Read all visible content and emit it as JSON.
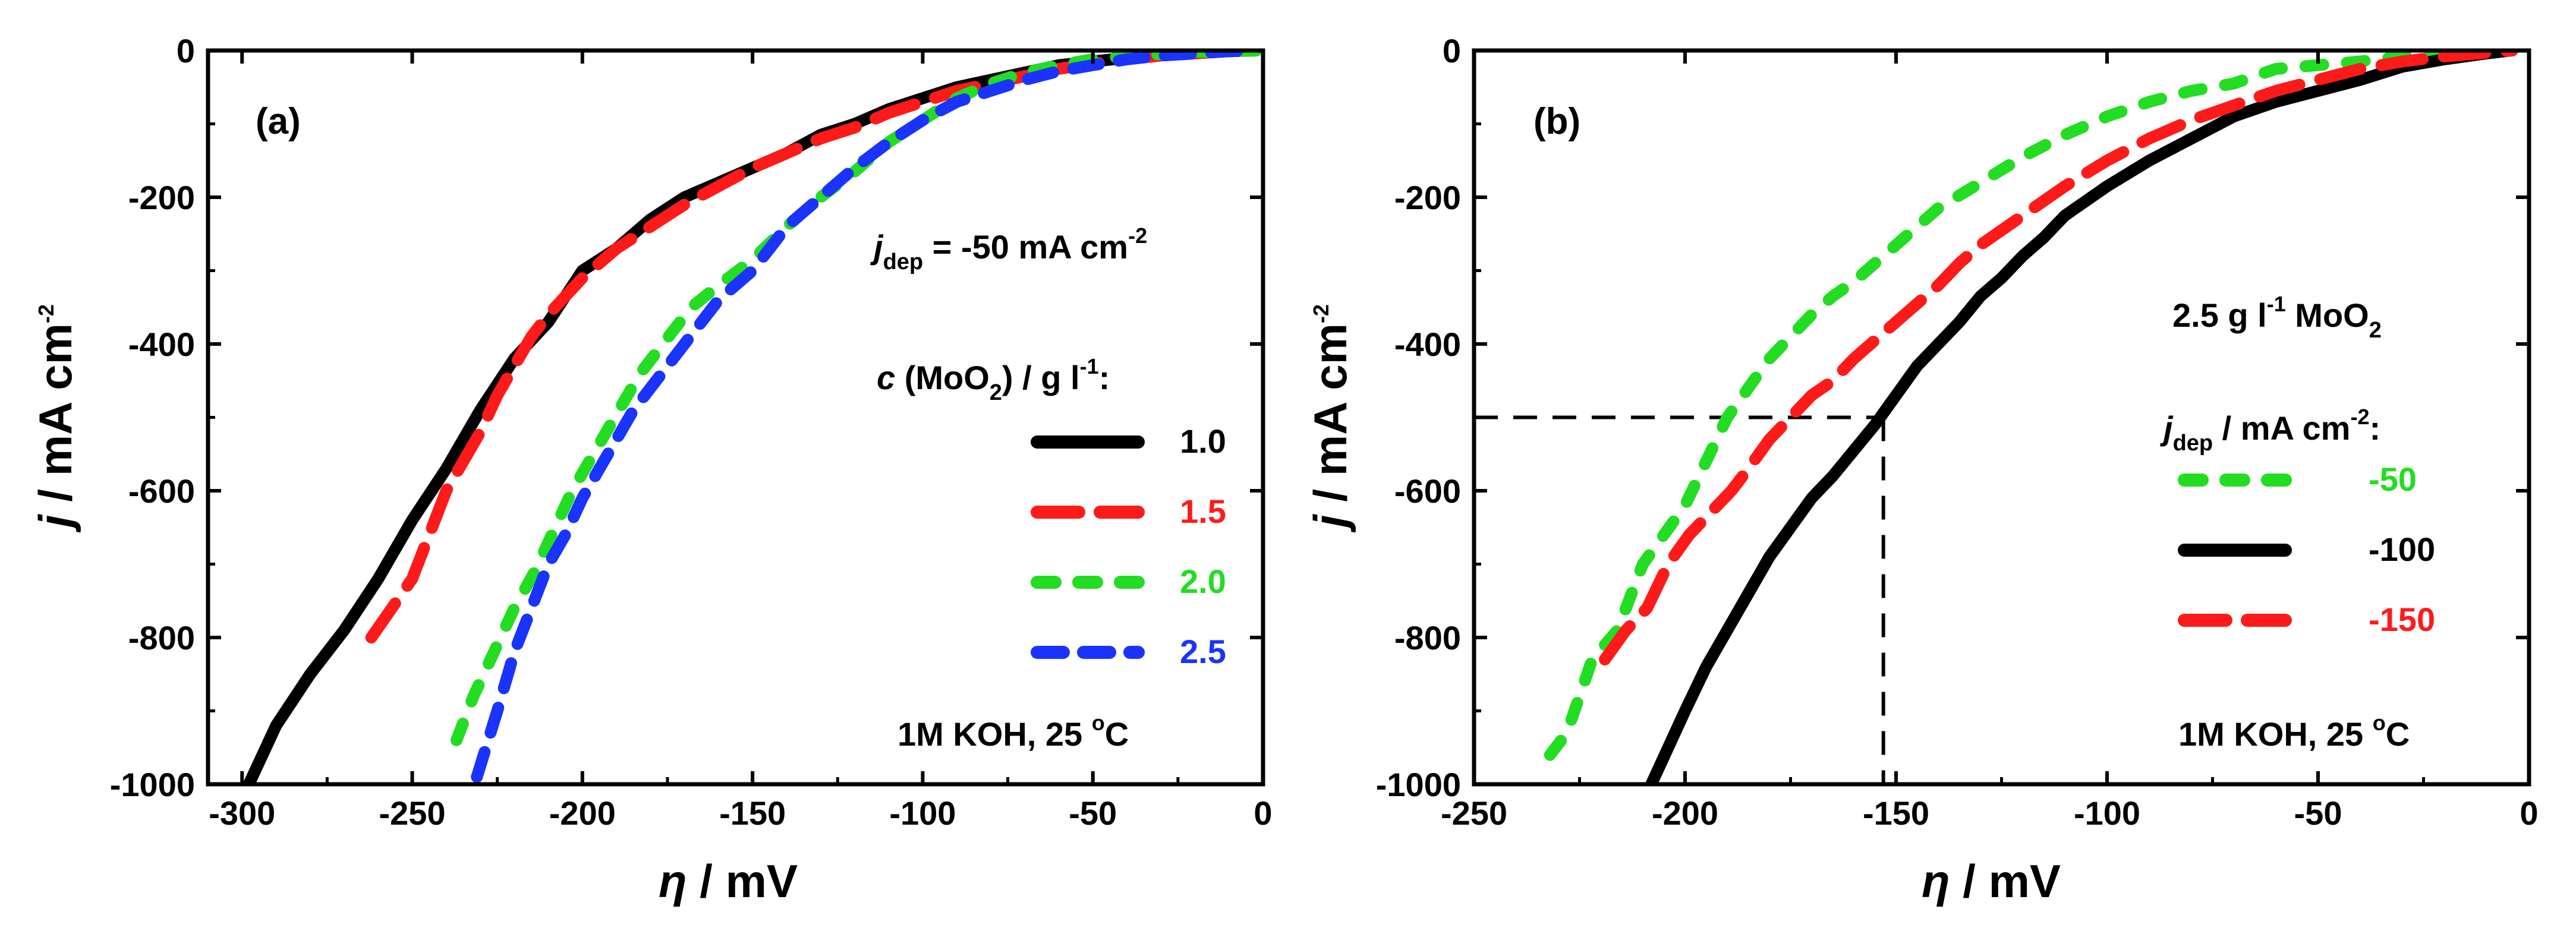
{
  "chart_data": [
    {
      "type": "line",
      "panel_label": "(a)",
      "xlabel_symbol": "η",
      "xlabel_unit": " / mV",
      "ylabel_symbol": "j",
      "ylabel_unit": " / mA cm",
      "ylabel_exp": "-2",
      "xlim": [
        -310,
        0
      ],
      "ylim": [
        -1000,
        0
      ],
      "xticks": [
        -300,
        -250,
        -200,
        -150,
        -100,
        -50,
        0
      ],
      "yticks": [
        0,
        -200,
        -400,
        -600,
        -800,
        -1000
      ],
      "annotation_jdep": {
        "symbol": "j",
        "sub": "dep",
        "text": " = -50 mA cm",
        "exp": "-2"
      },
      "legend_title": {
        "symbol": "c",
        "text1": " (MoO",
        "sub": "2",
        "text2": ") / g l",
        "exp": "-1",
        "text3": ":"
      },
      "legend_position": "center-right",
      "condition": {
        "text": "1M KOH, 25 ",
        "sup": "o",
        "tail": "C"
      },
      "series": [
        {
          "name": "1.0",
          "color": "#000000",
          "dash": "solid",
          "x": [
            -298,
            -290,
            -280,
            -270,
            -260,
            -250,
            -240,
            -230,
            -220,
            -210,
            -200,
            -190,
            -180,
            -170,
            -160,
            -150,
            -140,
            -130,
            -120,
            -110,
            -100,
            -90,
            -80,
            -70,
            -60,
            -50,
            -40,
            -30,
            -20,
            -10,
            -2
          ],
          "y": [
            -1000,
            -920,
            -850,
            -790,
            -720,
            -640,
            -570,
            -490,
            -420,
            -370,
            -300,
            -270,
            -230,
            -200,
            -180,
            -160,
            -140,
            -115,
            -100,
            -80,
            -65,
            -50,
            -40,
            -30,
            -20,
            -15,
            -10,
            -6,
            -3,
            -1,
            0
          ]
        },
        {
          "name": "1.5",
          "color": "#ff1a1a",
          "dash": "long",
          "x": [
            -262,
            -256,
            -250,
            -245,
            -240,
            -235,
            -230,
            -225,
            -220,
            -215,
            -210,
            -205,
            -200,
            -190,
            -180,
            -170,
            -160,
            -150,
            -140,
            -130,
            -120,
            -110,
            -100,
            -90,
            -80,
            -70,
            -60,
            -50,
            -40,
            -30,
            -20,
            -10,
            -2
          ],
          "y": [
            -800,
            -760,
            -720,
            -660,
            -600,
            -560,
            -520,
            -470,
            -430,
            -390,
            -360,
            -335,
            -310,
            -270,
            -240,
            -210,
            -185,
            -160,
            -140,
            -120,
            -105,
            -85,
            -70,
            -55,
            -45,
            -35,
            -25,
            -18,
            -12,
            -7,
            -4,
            -1,
            0
          ]
        },
        {
          "name": "2.0",
          "color": "#22dd22",
          "dash": "short",
          "x": [
            -237,
            -232,
            -226,
            -220,
            -214,
            -208,
            -203,
            -198,
            -193,
            -188,
            -183,
            -178,
            -173,
            -168,
            -160,
            -150,
            -140,
            -130,
            -120,
            -110,
            -100,
            -90,
            -80,
            -70,
            -60,
            -50,
            -40,
            -30,
            -20,
            -10,
            -2
          ],
          "y": [
            -940,
            -880,
            -820,
            -760,
            -710,
            -650,
            -600,
            -560,
            -520,
            -480,
            -440,
            -410,
            -380,
            -350,
            -320,
            -285,
            -240,
            -200,
            -165,
            -125,
            -95,
            -65,
            -45,
            -30,
            -20,
            -12,
            -8,
            -5,
            -2,
            -1,
            0
          ]
        },
        {
          "name": "2.5",
          "color": "#1a33ff",
          "dash": "medium",
          "x": [
            -231,
            -225,
            -220,
            -215,
            -210,
            -205,
            -200,
            -195,
            -190,
            -185,
            -180,
            -175,
            -170,
            -165,
            -160,
            -155,
            -150,
            -145,
            -140,
            -130,
            -120,
            -110,
            -100,
            -90,
            -80,
            -70,
            -60,
            -50,
            -40,
            -30,
            -20,
            -10,
            -2
          ],
          "y": [
            -990,
            -900,
            -820,
            -760,
            -700,
            -660,
            -610,
            -570,
            -530,
            -490,
            -460,
            -430,
            -400,
            -370,
            -340,
            -320,
            -300,
            -270,
            -240,
            -200,
            -160,
            -125,
            -95,
            -70,
            -55,
            -40,
            -28,
            -20,
            -12,
            -7,
            -4,
            -1,
            0
          ]
        }
      ]
    },
    {
      "type": "line",
      "panel_label": "(b)",
      "xlabel_symbol": "η",
      "xlabel_unit": " / mV",
      "ylabel_symbol": "j",
      "ylabel_unit": " / mA cm",
      "ylabel_exp": "-2",
      "xlim": [
        -250,
        0
      ],
      "ylim": [
        -1000,
        0
      ],
      "xticks": [
        -250,
        -200,
        -150,
        -100,
        -50,
        0
      ],
      "yticks": [
        0,
        -200,
        -400,
        -600,
        -800,
        -1000
      ],
      "annotation_conc": {
        "text": "2.5 g l",
        "exp": "-1",
        "text2": " MoO",
        "sub": "2"
      },
      "legend_title": {
        "symbol": "j",
        "sub": "dep",
        "text": " / mA cm",
        "exp": "-2",
        "tail": ":"
      },
      "legend_position": "center-right",
      "condition": {
        "text": "1M KOH, 25 ",
        "sup": "o",
        "tail": "C"
      },
      "guide_point": {
        "x": -153,
        "y": -500
      },
      "series": [
        {
          "name": "-50",
          "color": "#22dd22",
          "dash": "short",
          "x": [
            -232,
            -228,
            -222,
            -216,
            -210,
            -205,
            -200,
            -195,
            -190,
            -185,
            -180,
            -175,
            -170,
            -165,
            -160,
            -155,
            -150,
            -140,
            -130,
            -120,
            -110,
            -100,
            -90,
            -80,
            -70,
            -60,
            -50,
            -40,
            -30,
            -20,
            -10,
            -4
          ],
          "y": [
            -960,
            -930,
            -830,
            -790,
            -700,
            -660,
            -620,
            -560,
            -500,
            -460,
            -420,
            -390,
            -360,
            -335,
            -315,
            -290,
            -265,
            -215,
            -180,
            -145,
            -115,
            -90,
            -70,
            -55,
            -45,
            -25,
            -20,
            -15,
            -8,
            -5,
            -2,
            0
          ]
        },
        {
          "name": "-100",
          "color": "#000000",
          "dash": "solid",
          "x": [
            -208,
            -204,
            -200,
            -195,
            -190,
            -185,
            -180,
            -175,
            -170,
            -165,
            -160,
            -155,
            -150,
            -145,
            -140,
            -135,
            -130,
            -125,
            -120,
            -115,
            -110,
            -105,
            -100,
            -90,
            -80,
            -70,
            -60,
            -50,
            -40,
            -30,
            -20,
            -10,
            -4
          ],
          "y": [
            -1000,
            -950,
            -900,
            -840,
            -790,
            -740,
            -690,
            -650,
            -610,
            -580,
            -545,
            -510,
            -470,
            -430,
            -400,
            -370,
            -335,
            -310,
            -280,
            -255,
            -225,
            -205,
            -185,
            -150,
            -120,
            -90,
            -70,
            -55,
            -40,
            -22,
            -12,
            -4,
            0
          ]
        },
        {
          "name": "-150",
          "color": "#ff1a1a",
          "dash": "long",
          "x": [
            -219,
            -214,
            -209,
            -204,
            -199,
            -194,
            -189,
            -185,
            -180,
            -175,
            -170,
            -165,
            -160,
            -155,
            -150,
            -145,
            -140,
            -135,
            -130,
            -120,
            -110,
            -100,
            -90,
            -80,
            -70,
            -60,
            -50,
            -40,
            -30,
            -20,
            -10,
            -4
          ],
          "y": [
            -830,
            -790,
            -760,
            -700,
            -660,
            -630,
            -600,
            -570,
            -530,
            -500,
            -470,
            -450,
            -420,
            -395,
            -370,
            -345,
            -320,
            -290,
            -265,
            -225,
            -185,
            -150,
            -120,
            -95,
            -75,
            -55,
            -40,
            -25,
            -15,
            -8,
            -3,
            0
          ]
        }
      ]
    }
  ]
}
